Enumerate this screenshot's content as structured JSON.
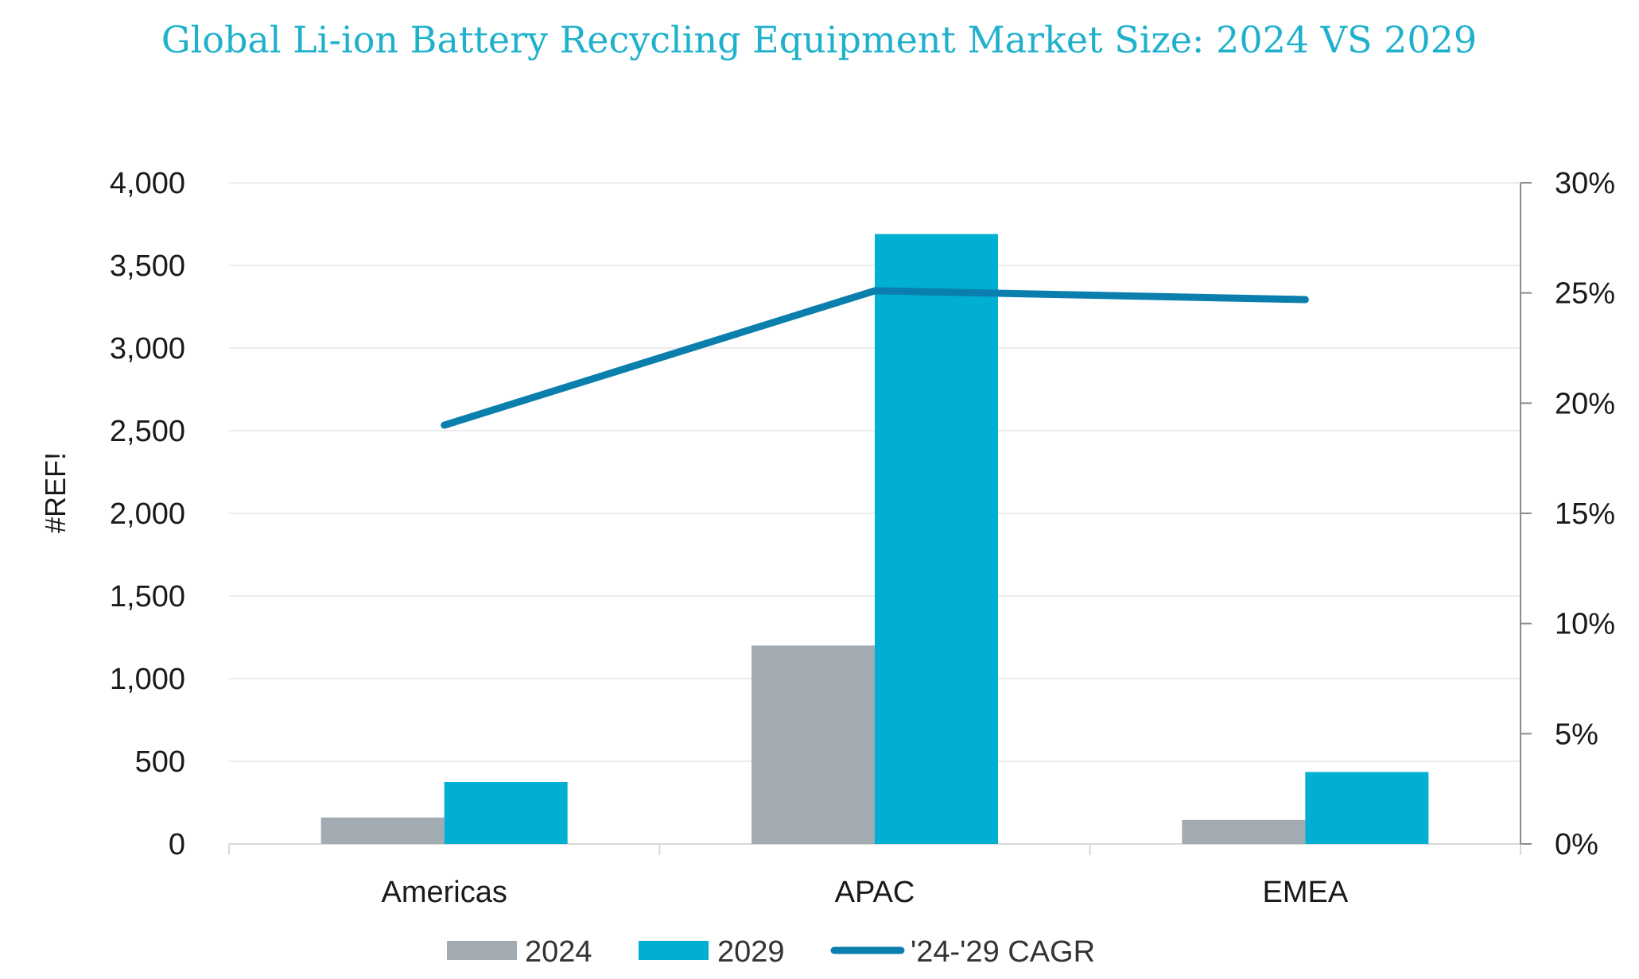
{
  "chart_data": {
    "type": "bar",
    "title": "Global Li-ion Battery Recycling Equipment Market Size: 2024 VS 2029",
    "ylabel": "#REF!",
    "categories": [
      "Americas",
      "APAC",
      "EMEA"
    ],
    "series": [
      {
        "name": "2024",
        "kind": "bar",
        "axis": "left",
        "color": "#a2abb1",
        "values": [
          160,
          1200,
          145
        ]
      },
      {
        "name": "2029",
        "kind": "bar",
        "axis": "left",
        "color": "#00afd1",
        "values": [
          375,
          3690,
          435
        ]
      },
      {
        "name": "'24-'29 CAGR",
        "kind": "line",
        "axis": "right",
        "color": "#0a7fae",
        "values": [
          0.19,
          0.251,
          0.247
        ]
      }
    ],
    "ylim": [
      0,
      4000
    ],
    "y_ticks": [
      "0",
      "500",
      "1,000",
      "1,500",
      "2,000",
      "2,500",
      "3,000",
      "3,500",
      "4,000"
    ],
    "y2lim": [
      0,
      0.3
    ],
    "y2_ticks": [
      "0%",
      "5%",
      "10%",
      "15%",
      "20%",
      "25%",
      "30%"
    ],
    "grid": true,
    "legend_position": "bottom"
  }
}
